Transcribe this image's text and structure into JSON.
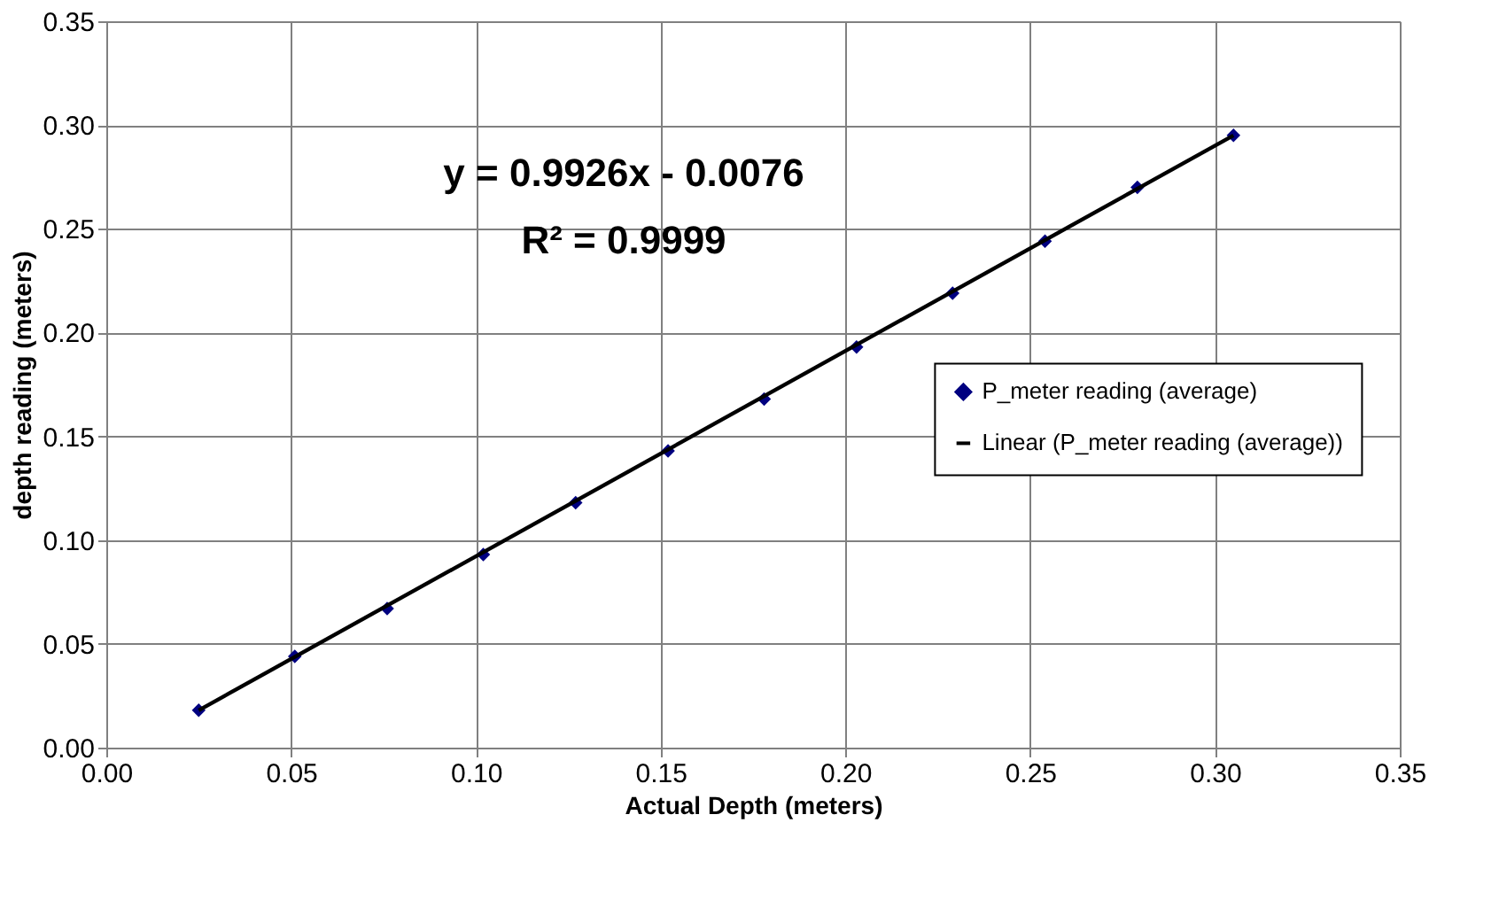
{
  "chart_data": {
    "type": "scatter",
    "xlabel": "Actual Depth (meters)",
    "ylabel": "depth reading (meters)",
    "xlim": [
      0,
      0.35
    ],
    "xticks": [
      {
        "value": 0,
        "label": "0.00"
      },
      0.05,
      {
        "value": 0.1,
        "label": "0.10"
      },
      0.15,
      {
        "value": 0.2,
        "label": "0.20"
      },
      0.25,
      {
        "value": 0.3,
        "label": "0.30"
      },
      0.35
    ],
    "ylim": [
      0,
      0.35
    ],
    "yticks": [
      {
        "value": 0,
        "label": "0.00"
      },
      0.05,
      {
        "value": 0.1,
        "label": "0.10"
      },
      0.15,
      {
        "value": 0.2,
        "label": "0.20"
      },
      0.25,
      {
        "value": 0.3,
        "label": "0.30"
      },
      0.35
    ],
    "grid": true,
    "legend": "right",
    "annotations": [
      "y = 0.9926x - 0.0076",
      "R² = 0.9999"
    ],
    "series": [
      {
        "name": "P_meter reading (average)",
        "color": "#000080",
        "marker": "diamond",
        "x": [
          0.025,
          0.051,
          0.076,
          0.102,
          0.127,
          0.152,
          0.178,
          0.203,
          0.229,
          0.254,
          0.279,
          0.305
        ],
        "values": [
          0.018,
          0.044,
          0.067,
          0.093,
          0.118,
          0.143,
          0.168,
          0.193,
          0.219,
          0.244,
          0.27,
          0.295
        ]
      },
      {
        "name": "Linear (P_meter reading (average))",
        "type": "line",
        "color": "#000000",
        "line_style": "solid",
        "x": [
          0.025,
          0.305
        ],
        "values": [
          0.018,
          0.295
        ]
      }
    ]
  }
}
